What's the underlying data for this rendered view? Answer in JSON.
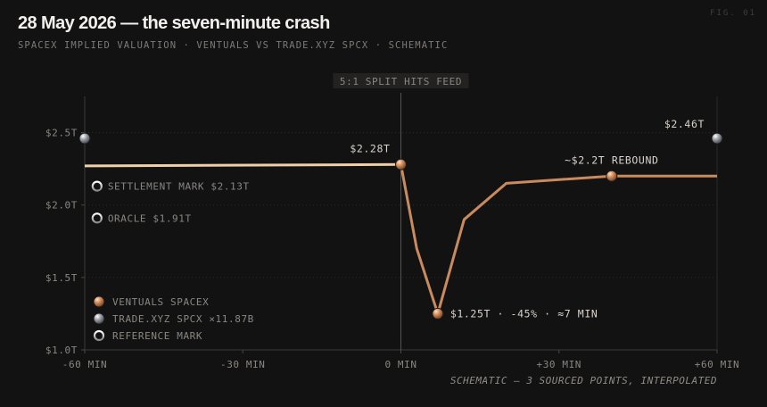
{
  "header": {
    "title": "28 May 2026 — the seven-minute crash",
    "subtitle": "SPACEX IMPLIED VALUATION · VENTUALS VS TRADE.XYZ SPCX · SCHEMATIC",
    "fig_label": "FIG. 01"
  },
  "colors": {
    "background": "#121212",
    "ventuals": "#c98a5e",
    "ventuals_flat": "#f0cfa8",
    "trade_xyz": "#8d9096",
    "reference": "#e6e6e6"
  },
  "chart_data": {
    "type": "line",
    "title": "28 May 2026 — the seven-minute crash",
    "subtitle": "SPACEX IMPLIED VALUATION · VENTUALS VS TRADE.XYZ SPCX · SCHEMATIC",
    "xlabel": "",
    "ylabel": "",
    "xlim": [
      -60,
      60
    ],
    "ylim": [
      1.0,
      2.75
    ],
    "x_ticks": [
      {
        "value": -60,
        "label": "-60 MIN"
      },
      {
        "value": -30,
        "label": "-30 MIN"
      },
      {
        "value": 0,
        "label": "0 MIN"
      },
      {
        "value": 30,
        "label": "+30 MIN"
      },
      {
        "value": 60,
        "label": "+60 MIN"
      }
    ],
    "y_ticks": [
      {
        "value": 1.0,
        "label": "$1.0T"
      },
      {
        "value": 1.5,
        "label": "$1.5T"
      },
      {
        "value": 2.0,
        "label": "$2.0T"
      },
      {
        "value": 2.5,
        "label": "$2.5T"
      }
    ],
    "grid": true,
    "event": {
      "x": 0,
      "label": "5:1 SPLIT HITS FEED"
    },
    "series": [
      {
        "name": "VENTUALS SPACEX",
        "points": [
          {
            "x": -60,
            "y": 2.27
          },
          {
            "x": 0,
            "y": 2.28
          },
          {
            "x": 3,
            "y": 1.7
          },
          {
            "x": 7,
            "y": 1.25
          },
          {
            "x": 12,
            "y": 1.9
          },
          {
            "x": 20,
            "y": 2.15
          },
          {
            "x": 40,
            "y": 2.2
          },
          {
            "x": 60,
            "y": 2.2
          }
        ],
        "markers": [
          {
            "x": 0,
            "y": 2.28,
            "label": "$2.28T"
          },
          {
            "x": 7,
            "y": 1.25,
            "label": "$1.25T · -45% · ≈7 MIN"
          },
          {
            "x": 40,
            "y": 2.2,
            "label": "~$2.2T REBOUND"
          }
        ]
      },
      {
        "name": "TRADE.XYZ SPCX ×11.87B",
        "markers": [
          {
            "x": -60,
            "y": 2.46,
            "label": ""
          },
          {
            "x": 60,
            "y": 2.46,
            "label": "$2.46T"
          }
        ]
      }
    ],
    "reference_marks": [
      {
        "x": -58,
        "y": 2.13,
        "label": "SETTLEMENT MARK $2.13T"
      },
      {
        "x": -58,
        "y": 1.91,
        "label": "ORACLE $1.91T"
      }
    ],
    "legend": {
      "placement": "bottom-left",
      "entries": [
        {
          "label": "VENTUALS SPACEX",
          "style": "ventuals"
        },
        {
          "label": "TRADE.XYZ SPCX ×11.87B",
          "style": "trade_xyz"
        },
        {
          "label": "REFERENCE MARK",
          "style": "reference"
        }
      ]
    },
    "note": "SCHEMATIC — 3 SOURCED POINTS, INTERPOLATED"
  }
}
